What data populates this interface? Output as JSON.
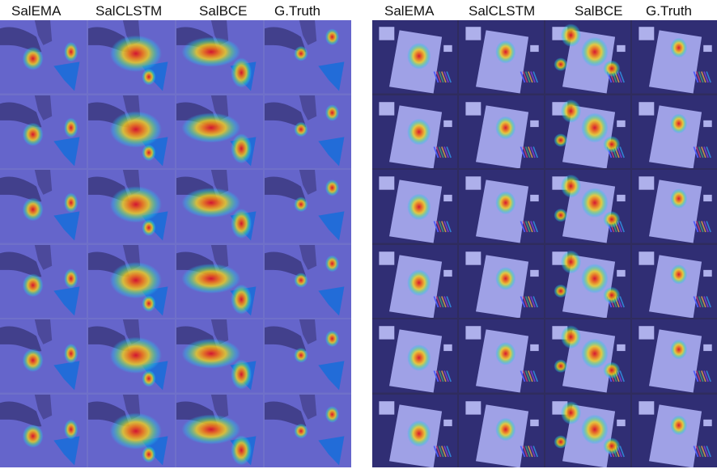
{
  "left_panel": {
    "headers": [
      "SalEMA",
      "SalCLSTM",
      "SalBCE",
      "G.Truth"
    ],
    "rows": 6,
    "scene": "origami"
  },
  "right_panel": {
    "headers": [
      "SalEMA",
      "SalCLSTM",
      "SalBCE",
      "G.Truth"
    ],
    "rows": 6,
    "scene": "drawing"
  },
  "colors": {
    "left_background": "#6f70c9",
    "right_background": "#2f2c5e",
    "heat_hot": "#d8102a",
    "heat_warm": "#f2d21b",
    "heat_cool": "#26c8e6"
  }
}
